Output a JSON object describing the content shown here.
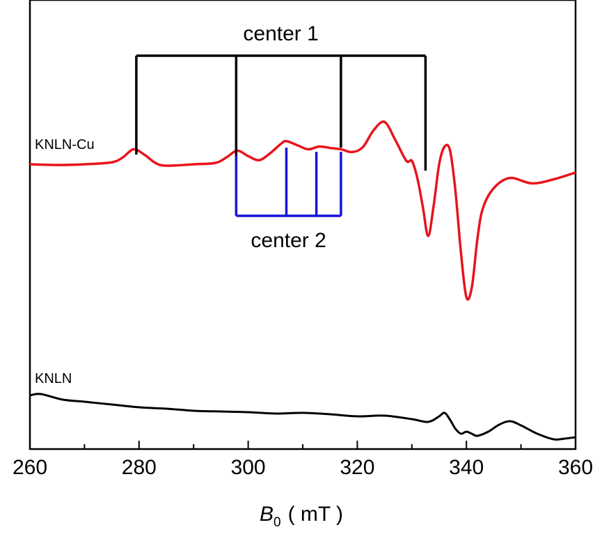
{
  "chart_data": {
    "type": "line",
    "title": "",
    "xlabel": {
      "symbol": "B",
      "subscript": "0",
      "unit": "( mT )"
    },
    "ylabel": "",
    "xlim": [
      260,
      360
    ],
    "x_ticks": [
      260,
      280,
      300,
      320,
      340,
      360
    ],
    "x_tick_labels": [
      "260",
      "280",
      "300",
      "320",
      "340",
      "360"
    ],
    "grid": false,
    "colors": {
      "KNLN-Cu": "#e8141c",
      "KNLN": "#000000",
      "center 1": "#000000",
      "center 2": "#1414dc"
    },
    "series": [
      {
        "name": "KNLN-Cu",
        "points": [
          [
            260,
            0.0
          ],
          [
            265,
            -0.01
          ],
          [
            270,
            0.0
          ],
          [
            275,
            0.03
          ],
          [
            277,
            0.1
          ],
          [
            279,
            0.22
          ],
          [
            281,
            0.14
          ],
          [
            283,
            0.02
          ],
          [
            285,
            -0.02
          ],
          [
            290,
            0.0
          ],
          [
            294,
            0.02
          ],
          [
            296,
            0.1
          ],
          [
            298,
            0.2
          ],
          [
            300,
            0.12
          ],
          [
            302,
            0.06
          ],
          [
            304,
            0.16
          ],
          [
            306,
            0.3
          ],
          [
            307,
            0.34
          ],
          [
            309,
            0.28
          ],
          [
            311,
            0.22
          ],
          [
            313,
            0.26
          ],
          [
            315,
            0.24
          ],
          [
            317,
            0.22
          ],
          [
            319,
            0.18
          ],
          [
            321,
            0.25
          ],
          [
            323,
            0.5
          ],
          [
            325,
            0.62
          ],
          [
            327,
            0.35
          ],
          [
            329,
            0.05
          ],
          [
            330,
            0.05
          ],
          [
            331,
            -0.2
          ],
          [
            332,
            -0.62
          ],
          [
            333,
            -1.05
          ],
          [
            334,
            -0.6
          ],
          [
            335,
            0.0
          ],
          [
            336,
            0.26
          ],
          [
            337,
            0.2
          ],
          [
            338,
            -0.4
          ],
          [
            339,
            -1.3
          ],
          [
            340,
            -1.95
          ],
          [
            341,
            -1.8
          ],
          [
            342,
            -1.1
          ],
          [
            343,
            -0.65
          ],
          [
            345,
            -0.35
          ],
          [
            348,
            -0.2
          ],
          [
            352,
            -0.28
          ],
          [
            356,
            -0.22
          ],
          [
            360,
            -0.12
          ]
        ]
      },
      {
        "name": "KNLN",
        "points": [
          [
            260,
            0.0
          ],
          [
            262,
            0.02
          ],
          [
            266,
            -0.06
          ],
          [
            270,
            -0.09
          ],
          [
            275,
            -0.13
          ],
          [
            280,
            -0.17
          ],
          [
            285,
            -0.19
          ],
          [
            290,
            -0.22
          ],
          [
            295,
            -0.23
          ],
          [
            300,
            -0.24
          ],
          [
            305,
            -0.26
          ],
          [
            310,
            -0.25
          ],
          [
            315,
            -0.27
          ],
          [
            320,
            -0.3
          ],
          [
            325,
            -0.29
          ],
          [
            330,
            -0.34
          ],
          [
            333,
            -0.38
          ],
          [
            335,
            -0.3
          ],
          [
            336,
            -0.25
          ],
          [
            337,
            -0.35
          ],
          [
            338,
            -0.48
          ],
          [
            339,
            -0.55
          ],
          [
            340,
            -0.52
          ],
          [
            341,
            -0.55
          ],
          [
            342,
            -0.58
          ],
          [
            344,
            -0.52
          ],
          [
            346,
            -0.42
          ],
          [
            348,
            -0.37
          ],
          [
            350,
            -0.43
          ],
          [
            353,
            -0.55
          ],
          [
            356,
            -0.63
          ],
          [
            358,
            -0.62
          ],
          [
            360,
            -0.6
          ]
        ]
      }
    ],
    "series_labels": [
      "KNLN-Cu",
      "KNLN"
    ],
    "annotations": [
      {
        "label": "center 1",
        "style": "comb-above",
        "positions": [
          279.5,
          297.8,
          317.0,
          332.5
        ]
      },
      {
        "label": "center 2",
        "style": "comb-below",
        "positions": [
          297.8,
          307.0,
          312.5,
          317.0
        ]
      }
    ]
  }
}
